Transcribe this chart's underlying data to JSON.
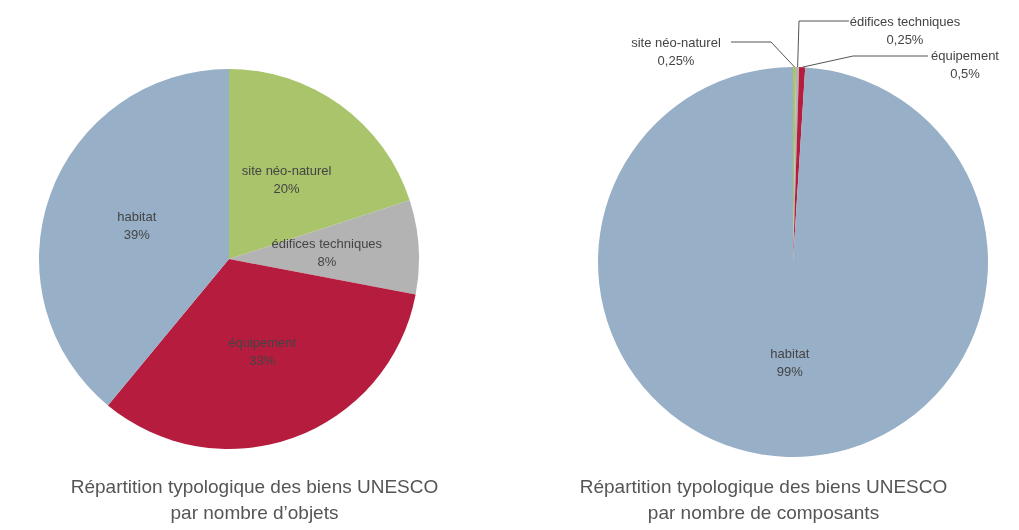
{
  "chart_data": [
    {
      "type": "pie",
      "title": "Répartition typologique des biens UNESCO\npar nombre d’objets",
      "categories": [
        "site néo-naturel",
        "édifices techniques",
        "équipement",
        "habitat"
      ],
      "values": [
        20,
        8,
        33,
        39
      ],
      "value_labels": [
        "20%",
        "8%",
        "33%",
        "39%"
      ],
      "colors": [
        "#a9c46a",
        "#b3b3b3",
        "#b51c3e",
        "#97afc7"
      ],
      "legend": false
    },
    {
      "type": "pie",
      "title": "Répartition typologique des biens UNESCO\npar nombre de composants",
      "categories": [
        "site néo-naturel",
        "édifices techniques",
        "équipement",
        "habitat"
      ],
      "values": [
        0.25,
        0.25,
        0.5,
        99
      ],
      "value_labels": [
        "0,25%",
        "0,25%",
        "0,5%",
        "99%"
      ],
      "colors": [
        "#a9c46a",
        "#b3b3b3",
        "#b51c3e",
        "#97afc7"
      ],
      "legend": false
    }
  ]
}
